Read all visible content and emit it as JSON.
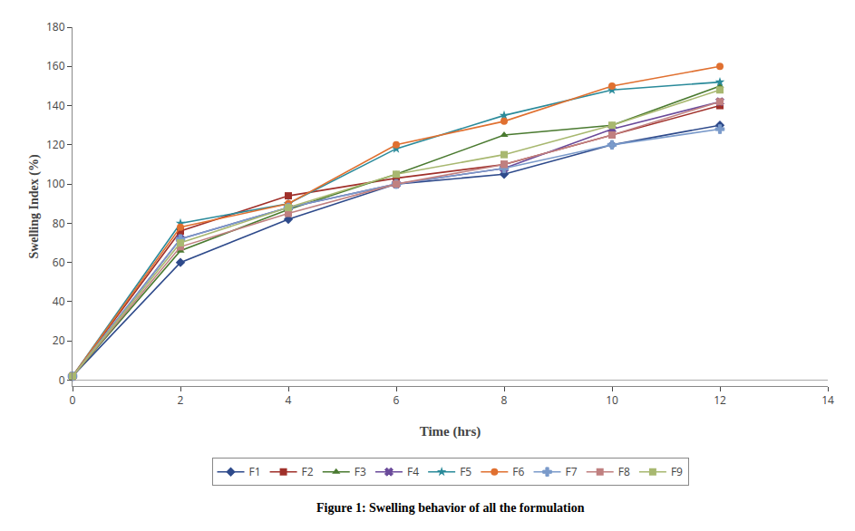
{
  "chart_data": {
    "type": "line",
    "xlabel": "Time (hrs)",
    "ylabel": "Swelling Index (%)",
    "annotations": [
      "Figure 1: Swelling behavior of all the formulation"
    ],
    "x": [
      0,
      2,
      4,
      6,
      8,
      10,
      12
    ],
    "series": [
      {
        "name": "F1",
        "color": "#2E4A8B",
        "marker": "diamond",
        "values": [
          2,
          60,
          82,
          100,
          105,
          120,
          130
        ]
      },
      {
        "name": "F2",
        "color": "#A0302A",
        "marker": "square",
        "values": [
          2,
          76,
          94,
          103,
          110,
          125,
          140
        ]
      },
      {
        "name": "F3",
        "color": "#4A7A30",
        "marker": "triangle-up",
        "values": [
          2,
          66,
          87,
          105,
          125,
          130,
          150
        ]
      },
      {
        "name": "F4",
        "color": "#6A4A9A",
        "marker": "x",
        "values": [
          2,
          72,
          88,
          100,
          108,
          128,
          142
        ]
      },
      {
        "name": "F5",
        "color": "#2A8A9A",
        "marker": "star",
        "values": [
          2,
          80,
          90,
          118,
          135,
          148,
          152
        ]
      },
      {
        "name": "F6",
        "color": "#E07030",
        "marker": "circle",
        "values": [
          2,
          78,
          90,
          120,
          132,
          150,
          160
        ]
      },
      {
        "name": "F7",
        "color": "#7A9ACA",
        "marker": "cross",
        "values": [
          2,
          72,
          88,
          100,
          108,
          120,
          128
        ]
      },
      {
        "name": "F8",
        "color": "#C08080",
        "marker": "square",
        "values": [
          2,
          68,
          85,
          100,
          110,
          125,
          142
        ]
      },
      {
        "name": "F9",
        "color": "#A8B870",
        "marker": "square",
        "values": [
          2,
          70,
          88,
          105,
          115,
          130,
          148
        ]
      }
    ],
    "xlim": [
      0,
      14
    ],
    "ylim": [
      -3,
      180
    ],
    "xticks": [
      0,
      2,
      4,
      6,
      8,
      10,
      12,
      14
    ],
    "yticks": [
      0,
      20,
      40,
      60,
      80,
      100,
      120,
      140,
      160,
      180
    ],
    "grid": false,
    "legend": "bottom"
  }
}
